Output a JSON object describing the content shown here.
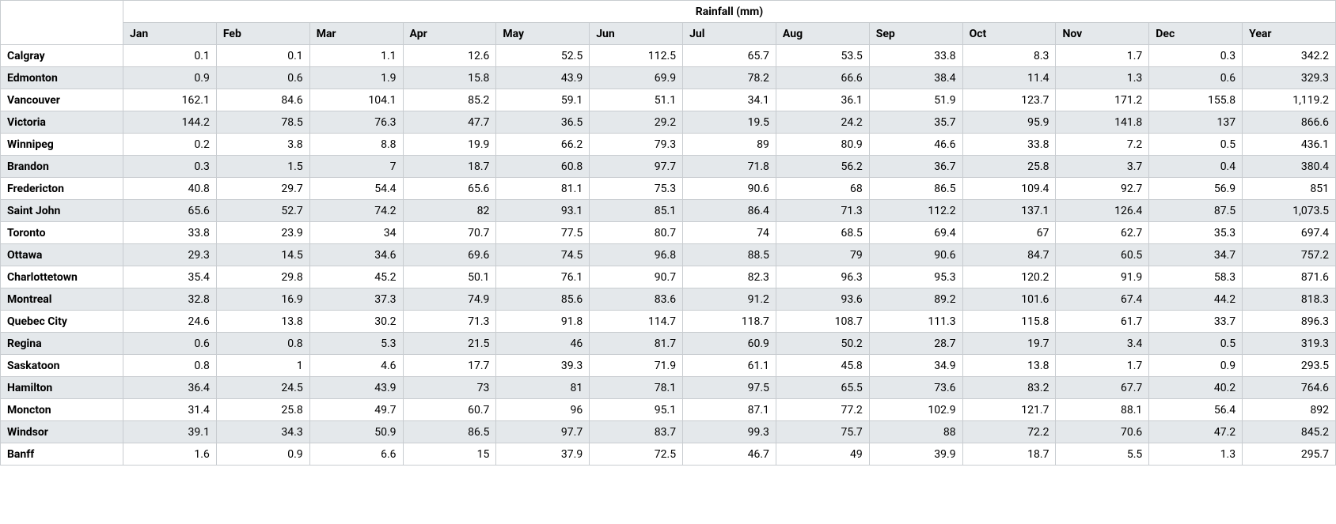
{
  "header": {
    "super": "Rainfall (mm)",
    "months": [
      "Jan",
      "Feb",
      "Mar",
      "Apr",
      "May",
      "Jun",
      "Jul",
      "Aug",
      "Sep",
      "Oct",
      "Nov",
      "Dec",
      "Year"
    ]
  },
  "rows": [
    {
      "city": "Calgray",
      "values": [
        "0.1",
        "0.1",
        "1.1",
        "12.6",
        "52.5",
        "112.5",
        "65.7",
        "53.5",
        "33.8",
        "8.3",
        "1.7",
        "0.3",
        "342.2"
      ]
    },
    {
      "city": "Edmonton",
      "values": [
        "0.9",
        "0.6",
        "1.9",
        "15.8",
        "43.9",
        "69.9",
        "78.2",
        "66.6",
        "38.4",
        "11.4",
        "1.3",
        "0.6",
        "329.3"
      ]
    },
    {
      "city": "Vancouver",
      "values": [
        "162.1",
        "84.6",
        "104.1",
        "85.2",
        "59.1",
        "51.1",
        "34.1",
        "36.1",
        "51.9",
        "123.7",
        "171.2",
        "155.8",
        "1,119.2"
      ]
    },
    {
      "city": "Victoria",
      "values": [
        "144.2",
        "78.5",
        "76.3",
        "47.7",
        "36.5",
        "29.2",
        "19.5",
        "24.2",
        "35.7",
        "95.9",
        "141.8",
        "137",
        "866.6"
      ]
    },
    {
      "city": "Winnipeg",
      "values": [
        "0.2",
        "3.8",
        "8.8",
        "19.9",
        "66.2",
        "79.3",
        "89",
        "80.9",
        "46.6",
        "33.8",
        "7.2",
        "0.5",
        "436.1"
      ]
    },
    {
      "city": "Brandon",
      "values": [
        "0.3",
        "1.5",
        "7",
        "18.7",
        "60.8",
        "97.7",
        "71.8",
        "56.2",
        "36.7",
        "25.8",
        "3.7",
        "0.4",
        "380.4"
      ]
    },
    {
      "city": "Fredericton",
      "values": [
        "40.8",
        "29.7",
        "54.4",
        "65.6",
        "81.1",
        "75.3",
        "90.6",
        "68",
        "86.5",
        "109.4",
        "92.7",
        "56.9",
        "851"
      ]
    },
    {
      "city": "Saint John",
      "values": [
        "65.6",
        "52.7",
        "74.2",
        "82",
        "93.1",
        "85.1",
        "86.4",
        "71.3",
        "112.2",
        "137.1",
        "126.4",
        "87.5",
        "1,073.5"
      ]
    },
    {
      "city": "Toronto",
      "values": [
        "33.8",
        "23.9",
        "34",
        "70.7",
        "77.5",
        "80.7",
        "74",
        "68.5",
        "69.4",
        "67",
        "62.7",
        "35.3",
        "697.4"
      ]
    },
    {
      "city": "Ottawa",
      "values": [
        "29.3",
        "14.5",
        "34.6",
        "69.6",
        "74.5",
        "96.8",
        "88.5",
        "79",
        "90.6",
        "84.7",
        "60.5",
        "34.7",
        "757.2"
      ]
    },
    {
      "city": "Charlottetown",
      "values": [
        "35.4",
        "29.8",
        "45.2",
        "50.1",
        "76.1",
        "90.7",
        "82.3",
        "96.3",
        "95.3",
        "120.2",
        "91.9",
        "58.3",
        "871.6"
      ]
    },
    {
      "city": "Montreal",
      "values": [
        "32.8",
        "16.9",
        "37.3",
        "74.9",
        "85.6",
        "83.6",
        "91.2",
        "93.6",
        "89.2",
        "101.6",
        "67.4",
        "44.2",
        "818.3"
      ]
    },
    {
      "city": "Quebec City",
      "values": [
        "24.6",
        "13.8",
        "30.2",
        "71.3",
        "91.8",
        "114.7",
        "118.7",
        "108.7",
        "111.3",
        "115.8",
        "61.7",
        "33.7",
        "896.3"
      ]
    },
    {
      "city": "Regina",
      "values": [
        "0.6",
        "0.8",
        "5.3",
        "21.5",
        "46",
        "81.7",
        "60.9",
        "50.2",
        "28.7",
        "19.7",
        "3.4",
        "0.5",
        "319.3"
      ]
    },
    {
      "city": "Saskatoon",
      "values": [
        "0.8",
        "1",
        "4.6",
        "17.7",
        "39.3",
        "71.9",
        "61.1",
        "45.8",
        "34.9",
        "13.8",
        "1.7",
        "0.9",
        "293.5"
      ]
    },
    {
      "city": "Hamilton",
      "values": [
        "36.4",
        "24.5",
        "43.9",
        "73",
        "81",
        "78.1",
        "97.5",
        "65.5",
        "73.6",
        "83.2",
        "67.7",
        "40.2",
        "764.6"
      ]
    },
    {
      "city": "Moncton",
      "values": [
        "31.4",
        "25.8",
        "49.7",
        "60.7",
        "96",
        "95.1",
        "87.1",
        "77.2",
        "102.9",
        "121.7",
        "88.1",
        "56.4",
        "892"
      ]
    },
    {
      "city": "Windsor",
      "values": [
        "39.1",
        "34.3",
        "50.9",
        "86.5",
        "97.7",
        "83.7",
        "99.3",
        "75.7",
        "88",
        "72.2",
        "70.6",
        "47.2",
        "845.2"
      ]
    },
    {
      "city": "Banff",
      "values": [
        "1.6",
        "0.9",
        "6.6",
        "15",
        "37.9",
        "72.5",
        "46.7",
        "49",
        "39.9",
        "18.7",
        "5.5",
        "1.3",
        "295.7"
      ]
    }
  ]
}
